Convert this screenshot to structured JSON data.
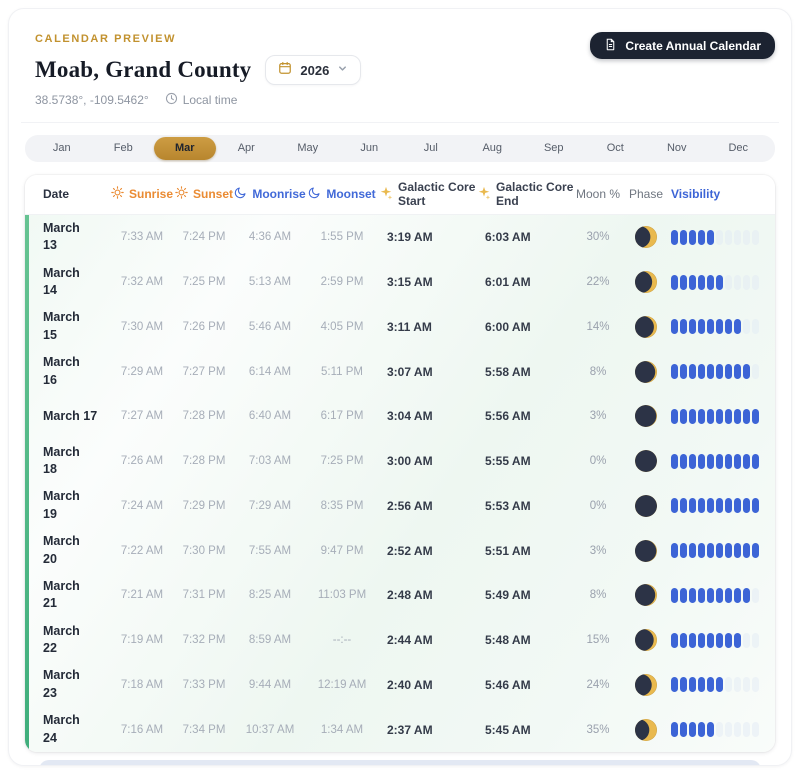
{
  "page": {
    "eyebrow": "CALENDAR PREVIEW",
    "title": "Moab, Grand County",
    "year": "2026",
    "coordinates": "38.5738°, -109.5462°",
    "local_time": "Local time",
    "create_button": "Create Annual Calendar"
  },
  "months": {
    "items": [
      "Jan",
      "Feb",
      "Mar",
      "Apr",
      "May",
      "Jun",
      "Jul",
      "Aug",
      "Sep",
      "Oct",
      "Nov",
      "Dec"
    ],
    "selected": "Mar"
  },
  "table": {
    "columns": [
      "Date",
      "Sunrise",
      "Sunset",
      "Moonrise",
      "Moonset",
      "Galactic Core Start",
      "Galactic Core End",
      "Moon %",
      "Phase",
      "Visibility"
    ],
    "max_bars": 10,
    "rows": [
      {
        "date": "March 13",
        "wrap": true,
        "sunrise": "7:33 AM",
        "sunset": "7:24 PM",
        "moonrise": "4:36 AM",
        "moonset": "1:55 PM",
        "gc_start": "3:19 AM",
        "gc_end": "6:03 AM",
        "moon_pct": "30%",
        "illum": 30,
        "bars": 5
      },
      {
        "date": "March 14",
        "wrap": true,
        "sunrise": "7:32 AM",
        "sunset": "7:25 PM",
        "moonrise": "5:13 AM",
        "moonset": "2:59 PM",
        "gc_start": "3:15 AM",
        "gc_end": "6:01 AM",
        "moon_pct": "22%",
        "illum": 22,
        "bars": 6
      },
      {
        "date": "March 15",
        "wrap": true,
        "sunrise": "7:30 AM",
        "sunset": "7:26 PM",
        "moonrise": "5:46 AM",
        "moonset": "4:05 PM",
        "gc_start": "3:11 AM",
        "gc_end": "6:00 AM",
        "moon_pct": "14%",
        "illum": 14,
        "bars": 8
      },
      {
        "date": "March 16",
        "wrap": true,
        "sunrise": "7:29 AM",
        "sunset": "7:27 PM",
        "moonrise": "6:14 AM",
        "moonset": "5:11 PM",
        "gc_start": "3:07 AM",
        "gc_end": "5:58 AM",
        "moon_pct": "8%",
        "illum": 8,
        "bars": 9
      },
      {
        "date": "March 17",
        "wrap": false,
        "sunrise": "7:27 AM",
        "sunset": "7:28 PM",
        "moonrise": "6:40 AM",
        "moonset": "6:17 PM",
        "gc_start": "3:04 AM",
        "gc_end": "5:56 AM",
        "moon_pct": "3%",
        "illum": 3,
        "bars": 10
      },
      {
        "date": "March 18",
        "wrap": true,
        "sunrise": "7:26 AM",
        "sunset": "7:28 PM",
        "moonrise": "7:03 AM",
        "moonset": "7:25 PM",
        "gc_start": "3:00 AM",
        "gc_end": "5:55 AM",
        "moon_pct": "0%",
        "illum": 0,
        "bars": 10
      },
      {
        "date": "March 19",
        "wrap": true,
        "sunrise": "7:24 AM",
        "sunset": "7:29 PM",
        "moonrise": "7:29 AM",
        "moonset": "8:35 PM",
        "gc_start": "2:56 AM",
        "gc_end": "5:53 AM",
        "moon_pct": "0%",
        "illum": 0,
        "bars": 10
      },
      {
        "date": "March 20",
        "wrap": true,
        "sunrise": "7:22 AM",
        "sunset": "7:30 PM",
        "moonrise": "7:55 AM",
        "moonset": "9:47 PM",
        "gc_start": "2:52 AM",
        "gc_end": "5:51 AM",
        "moon_pct": "3%",
        "illum": 3,
        "bars": 10
      },
      {
        "date": "March 21",
        "wrap": true,
        "sunrise": "7:21 AM",
        "sunset": "7:31 PM",
        "moonrise": "8:25 AM",
        "moonset": "11:03 PM",
        "gc_start": "2:48 AM",
        "gc_end": "5:49 AM",
        "moon_pct": "8%",
        "illum": 8,
        "bars": 9
      },
      {
        "date": "March 22",
        "wrap": true,
        "sunrise": "7:19 AM",
        "sunset": "7:32 PM",
        "moonrise": "8:59 AM",
        "moonset": "--:--",
        "gc_start": "2:44 AM",
        "gc_end": "5:48 AM",
        "moon_pct": "15%",
        "illum": 15,
        "bars": 8
      },
      {
        "date": "March 23",
        "wrap": true,
        "sunrise": "7:18 AM",
        "sunset": "7:33 PM",
        "moonrise": "9:44 AM",
        "moonset": "12:19 AM",
        "gc_start": "2:40 AM",
        "gc_end": "5:46 AM",
        "moon_pct": "24%",
        "illum": 24,
        "bars": 6
      },
      {
        "date": "March 24",
        "wrap": true,
        "sunrise": "7:16 AM",
        "sunset": "7:34 PM",
        "moonrise": "10:37 AM",
        "moonset": "1:34 AM",
        "gc_start": "2:37 AM",
        "gc_end": "5:45 AM",
        "moon_pct": "35%",
        "illum": 35,
        "bars": 5
      }
    ]
  },
  "colors": {
    "accent_gold": "#c2922f",
    "accent_green": "#4db582",
    "sun_orange": "#ea8b33",
    "moon_blue": "#4169d8",
    "visibility_blue": "#3c64d6",
    "dark_button": "#1c2331",
    "moon_dark": "#2c3346",
    "moon_gold": "#e9b94e"
  }
}
